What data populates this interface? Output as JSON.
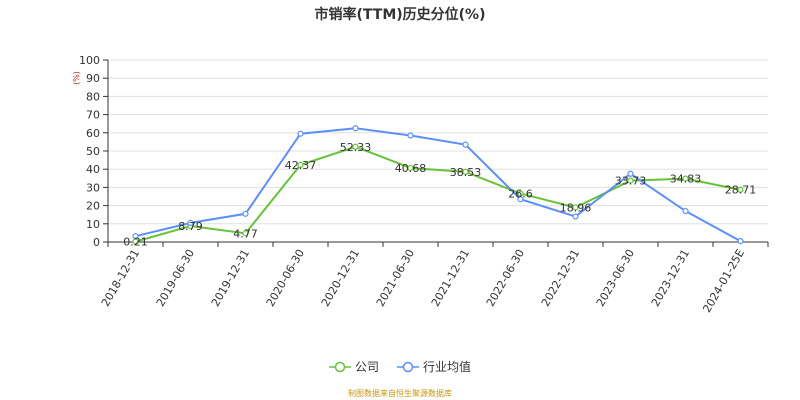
{
  "chart_data": {
    "type": "line",
    "title": "市销率(TTM)历史分位(%)",
    "unit_label": "(%)",
    "categories": [
      "2018-12-31",
      "2019-06-30",
      "2019-12-31",
      "2020-06-30",
      "2020-12-31",
      "2021-06-30",
      "2021-12-31",
      "2022-06-30",
      "2022-12-31",
      "2023-06-30",
      "2023-12-31",
      "2024-01-25E"
    ],
    "ylim": [
      0,
      100
    ],
    "yticks": [
      0,
      10,
      20,
      30,
      40,
      50,
      60,
      70,
      80,
      90,
      100
    ],
    "grid": true,
    "legend_position": "bottom",
    "series": [
      {
        "name": "公司",
        "color": "#67c23a",
        "values": [
          0.21,
          8.79,
          4.77,
          42.37,
          52.33,
          40.68,
          38.53,
          26.6,
          18.96,
          33.73,
          34.83,
          28.71
        ],
        "labels": [
          "0.21",
          "8.79",
          "4.77",
          "42.37",
          "52.33",
          "40.68",
          "38.53",
          "26.6",
          "18.96",
          "33.73",
          "34.83",
          "28.71"
        ]
      },
      {
        "name": "行业均值",
        "color": "#5b8ff9",
        "values": [
          3.2,
          10.5,
          15.5,
          59.5,
          62.5,
          58.5,
          53.5,
          23.5,
          14.0,
          37.5,
          17.0,
          0.5
        ]
      }
    ]
  },
  "source_note": "制图数据来自恒生聚源数据库"
}
